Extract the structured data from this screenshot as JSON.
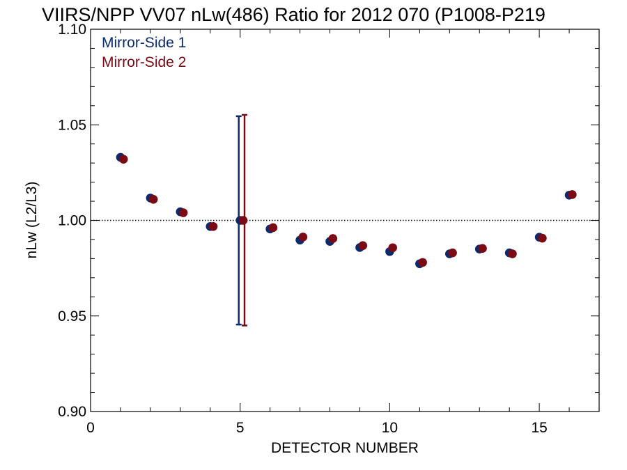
{
  "chart_data": {
    "type": "scatter",
    "title": "VIIRS/NPP VV07 nLw(486) Ratio for 2012 070 (P1008-P219",
    "xlabel": "DETECTOR NUMBER",
    "ylabel": "nLw (L2/L3)",
    "xlim": [
      0,
      17
    ],
    "ylim": [
      0.9,
      1.1
    ],
    "x_ticks": [
      0,
      5,
      10,
      15
    ],
    "x_tick_labels": [
      "0",
      "5",
      "10",
      "15"
    ],
    "y_ticks": [
      0.9,
      0.95,
      1.0,
      1.05,
      1.1
    ],
    "y_tick_labels": [
      "0.90",
      "0.95",
      "1.00",
      "1.05",
      "1.10"
    ],
    "reference_line": 1.0,
    "grid": false,
    "legend_position": "top-left",
    "series": [
      {
        "name": "Mirror-Side 1",
        "color": "#0a2a6e",
        "x": [
          1,
          2,
          3,
          4,
          5,
          6,
          7,
          8,
          9,
          10,
          11,
          12,
          13,
          14,
          15,
          16
        ],
        "values": [
          1.033,
          1.0117,
          1.0045,
          0.9968,
          1.0,
          0.9955,
          0.9897,
          0.989,
          0.9858,
          0.9837,
          0.9773,
          0.9825,
          0.985,
          0.983,
          0.9912,
          1.0132
        ],
        "error_bar": {
          "x": 5,
          "low": 0.9455,
          "high": 1.0545
        }
      },
      {
        "name": "Mirror-Side 2",
        "color": "#7a0a14",
        "x": [
          1,
          2,
          3,
          4,
          5,
          6,
          7,
          8,
          9,
          10,
          11,
          12,
          13,
          14,
          15,
          16
        ],
        "values": [
          1.032,
          1.011,
          1.004,
          0.9968,
          1.0,
          0.9962,
          0.9913,
          0.9905,
          0.9868,
          0.9857,
          0.978,
          0.983,
          0.9853,
          0.9825,
          0.9907,
          1.0135
        ],
        "error_bar": {
          "x": 5,
          "low": 0.945,
          "high": 1.0552
        }
      }
    ]
  }
}
